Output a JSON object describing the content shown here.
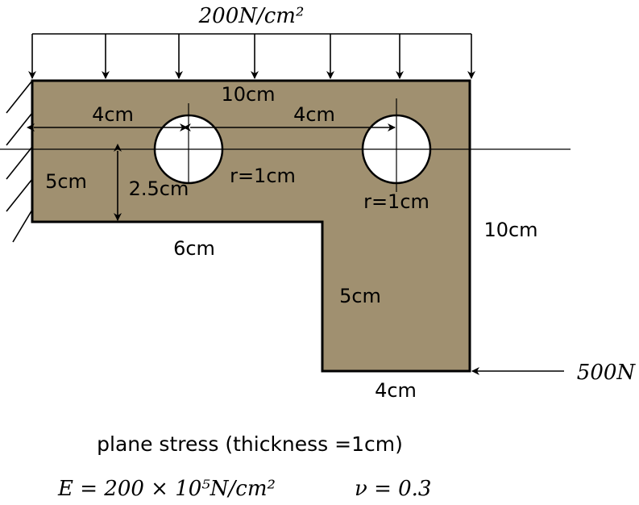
{
  "load": {
    "distributed": "200N/cm²",
    "point": "500N"
  },
  "dimensions": {
    "top_width": "10cm",
    "hole1_offset": "4cm",
    "hole_spacing": "4cm",
    "left_height": "5cm",
    "hole_height": "2.5cm",
    "hole1_radius": "r=1cm",
    "hole2_radius": "r=1cm",
    "bottom_left_width": "6cm",
    "right_height": "10cm",
    "leg_height": "5cm",
    "leg_width": "4cm"
  },
  "notes": {
    "condition": "plane stress (thickness =1cm)",
    "material_E": "E = 200 × 10⁵N/cm²",
    "material_nu": "ν = 0.3"
  },
  "colors": {
    "plate_fill": "#a09070",
    "line": "#000000",
    "hole_fill": "#ffffff"
  }
}
